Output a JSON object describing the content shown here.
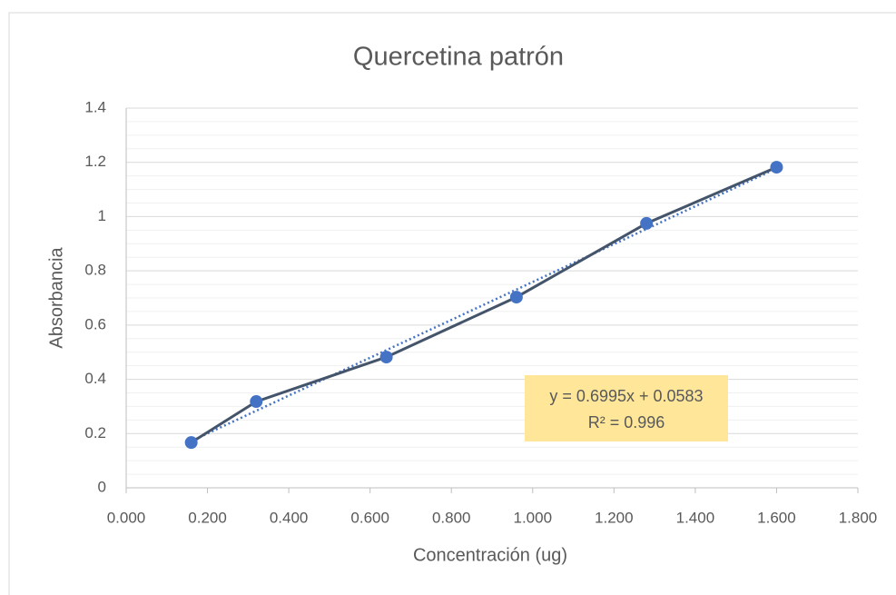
{
  "chart_data": {
    "type": "scatter-line",
    "title": "Quercetina patrón",
    "x_label": "Concentración (ug)",
    "y_label": "Absorbancia",
    "series": [
      {
        "name": "Quercetina patrón",
        "color": "#4472c4",
        "line_color": "#44546a",
        "x": [
          0.16,
          0.32,
          0.64,
          0.96,
          1.28,
          1.6
        ],
        "values": [
          0.167,
          0.318,
          0.482,
          0.703,
          0.975,
          1.182
        ]
      }
    ],
    "trendline": {
      "type": "linear",
      "color": "#4472c4",
      "equation": "y = 0.6995x + 0.0583",
      "r2": "R² = 0.996"
    },
    "xlim": [
      0,
      1.8
    ],
    "xticks": [
      {
        "value": 0,
        "label": "0.000"
      },
      {
        "value": 0.2,
        "label": "0.200"
      },
      {
        "value": 0.4,
        "label": "0.400"
      },
      {
        "value": 0.6,
        "label": "0.600"
      },
      {
        "value": 0.8,
        "label": "0.800"
      },
      {
        "value": 1,
        "label": "1.000"
      },
      {
        "value": 1.2,
        "label": "1.200"
      },
      {
        "value": 1.4,
        "label": "1.400"
      },
      {
        "value": 1.6,
        "label": "1.600"
      },
      {
        "value": 1.8,
        "label": "1.800"
      }
    ],
    "ylim": [
      0,
      1.4
    ],
    "yticks": [
      0,
      0.2,
      0.4,
      0.6,
      0.8,
      1,
      1.2,
      1.4
    ],
    "grid": true,
    "minor_grid": true
  }
}
